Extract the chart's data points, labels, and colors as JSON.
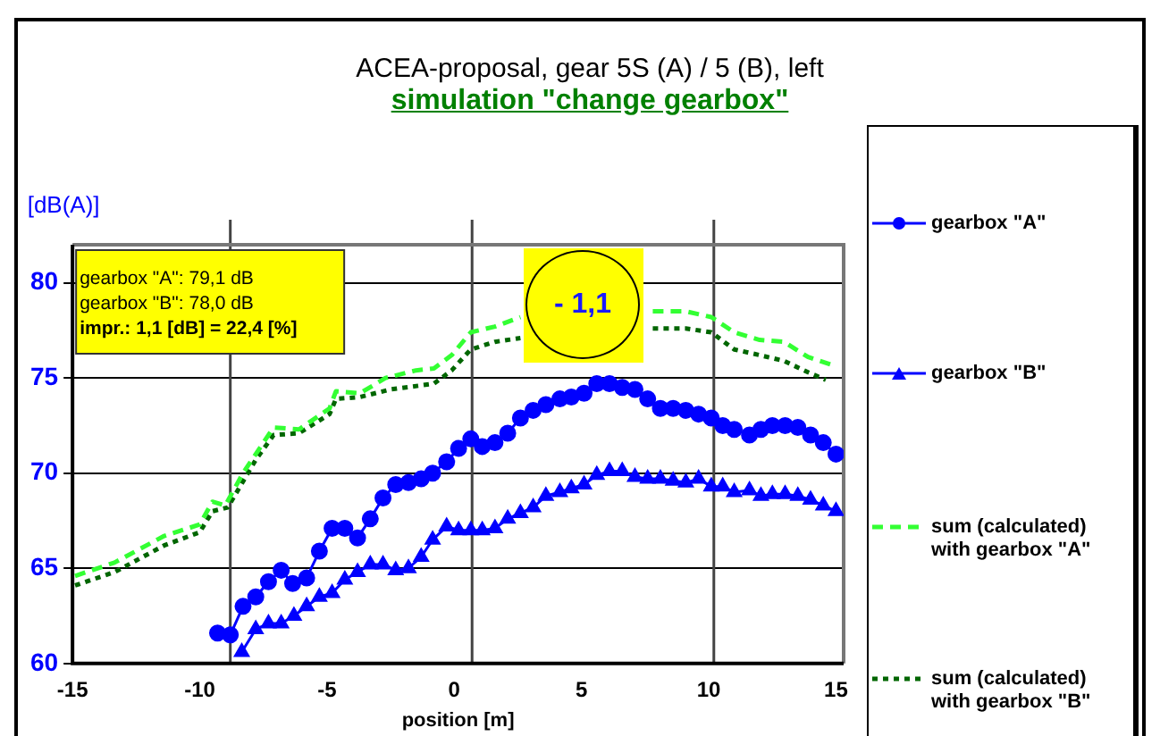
{
  "chart_data": {
    "type": "line",
    "title": "ACEA-proposal, gear 5S (A) / 5 (B), left",
    "subtitle": "simulation \"change gearbox\"",
    "xlabel": "position [m]",
    "ylabel": "[dB(A)]",
    "xlim": [
      -15,
      15.3
    ],
    "xticks": [
      -15,
      -10,
      -5,
      0,
      5,
      10,
      15
    ],
    "ylim": [
      60,
      82
    ],
    "yticks": [
      60,
      65,
      70,
      75,
      80
    ],
    "grid": "y",
    "legend": "right",
    "ref_lines": [
      {
        "axis": "x",
        "value": -8.8
      },
      {
        "axis": "x",
        "value": 0.7
      },
      {
        "axis": "x",
        "value": 10.2
      }
    ],
    "annotations": [
      "gearbox \"A\": 79,1 dB",
      "gearbox \"B\": 78,0 dB",
      "impr.: 1,1 [dB] = 22,4 [%]",
      "- 1,1"
    ],
    "series": [
      {
        "name": "gearbox \"A\"",
        "color": "#0000ff",
        "marker": "circle",
        "line_style": "solid",
        "x": [
          -9.3,
          -8.8,
          -8.3,
          -7.8,
          -7.3,
          -6.8,
          -6.35,
          -5.8,
          -5.3,
          -4.8,
          -4.3,
          -3.8,
          -3.3,
          -2.8,
          -2.3,
          -1.8,
          -1.3,
          -0.85,
          -0.3,
          0.17,
          0.65,
          1.1,
          1.6,
          2.1,
          2.6,
          3.1,
          3.6,
          4.15,
          4.6,
          5.1,
          5.6,
          6.1,
          6.6,
          7.1,
          7.6,
          8.1,
          8.6,
          9.1,
          9.6,
          10.1,
          10.55,
          11.0,
          11.6,
          12.05,
          12.5,
          13.0,
          13.5,
          14.0,
          14.5,
          15.0
        ],
        "values": [
          61.6,
          61.5,
          63.0,
          63.5,
          64.3,
          64.9,
          64.2,
          64.5,
          65.9,
          67.1,
          67.1,
          66.6,
          67.6,
          68.7,
          69.4,
          69.5,
          69.7,
          70.0,
          70.6,
          71.3,
          71.8,
          71.4,
          71.6,
          72.1,
          72.9,
          73.3,
          73.6,
          73.9,
          74.0,
          74.2,
          74.7,
          74.7,
          74.5,
          74.4,
          73.9,
          73.4,
          73.4,
          73.3,
          73.1,
          72.9,
          72.5,
          72.3,
          72.0,
          72.3,
          72.5,
          72.5,
          72.4,
          72.0,
          71.6,
          71.0
        ]
      },
      {
        "name": "gearbox \"B\"",
        "color": "#0000ff",
        "marker": "triangle",
        "line_style": "solid",
        "x": [
          -8.35,
          -7.8,
          -7.3,
          -6.8,
          -6.3,
          -5.8,
          -5.3,
          -4.8,
          -4.3,
          -3.8,
          -3.3,
          -2.8,
          -2.3,
          -1.8,
          -1.3,
          -0.85,
          -0.3,
          0.17,
          0.65,
          1.1,
          1.6,
          2.1,
          2.6,
          3.1,
          3.6,
          4.15,
          4.6,
          5.1,
          5.6,
          6.1,
          6.6,
          7.1,
          7.6,
          8.1,
          8.6,
          9.1,
          9.6,
          10.1,
          10.55,
          11.0,
          11.6,
          12.05,
          12.5,
          13.0,
          13.5,
          14.0,
          14.5,
          15.0
        ],
        "values": [
          60.6,
          61.8,
          62.1,
          62.1,
          62.5,
          63.0,
          63.5,
          63.7,
          64.4,
          64.8,
          65.2,
          65.2,
          64.9,
          65.0,
          65.6,
          66.5,
          67.2,
          67.0,
          67.0,
          67.0,
          67.1,
          67.6,
          67.9,
          68.2,
          68.8,
          69.0,
          69.2,
          69.4,
          69.9,
          70.1,
          70.1,
          69.8,
          69.7,
          69.7,
          69.6,
          69.5,
          69.7,
          69.3,
          69.3,
          69.0,
          69.1,
          68.8,
          68.9,
          68.9,
          68.8,
          68.6,
          68.3,
          68.0
        ]
      },
      {
        "name": "sum (calculated) with gearbox \"A\"",
        "color": "#33ff33",
        "marker": "none",
        "line_style": "dashed",
        "x": [
          -14.9,
          -13.35,
          -11.4,
          -10.0,
          -9.5,
          -9.0,
          -8.3,
          -7.55,
          -7.1,
          -6.1,
          -4.9,
          -4.65,
          -3.7,
          -2.7,
          -1.5,
          -0.8,
          -0.1,
          0.65,
          1.6,
          2.6,
          5,
          7.8,
          9.1,
          10.1,
          11.0,
          12.0,
          12.95,
          13.9,
          14.8
        ],
        "values": [
          64.6,
          65.3,
          66.7,
          67.3,
          68.5,
          68.3,
          70.0,
          71.5,
          72.4,
          72.3,
          73.4,
          74.3,
          74.2,
          75.0,
          75.4,
          75.5,
          76.2,
          77.4,
          77.7,
          78.2,
          null,
          78.5,
          78.5,
          78.2,
          77.4,
          77.0,
          76.9,
          76.1,
          75.7
        ]
      },
      {
        "name": "sum (calculated) with gearbox \"B\"",
        "color": "#006600",
        "marker": "none",
        "line_style": "dotted",
        "x": [
          -14.9,
          -13.35,
          -11.4,
          -10.0,
          -9.5,
          -8.9,
          -7.8,
          -7.1,
          -6.1,
          -4.9,
          -4.65,
          -3.7,
          -2.5,
          -0.8,
          -0.1,
          0.65,
          1.6,
          2.6,
          5,
          7.8,
          9.1,
          10.1,
          11.0,
          12.0,
          12.95,
          13.9,
          14.6
        ],
        "values": [
          64.1,
          64.8,
          66.2,
          66.9,
          68.0,
          68.2,
          70.7,
          72.0,
          72.1,
          73.1,
          73.9,
          74.0,
          74.4,
          74.7,
          75.4,
          76.5,
          76.9,
          77.1,
          null,
          77.6,
          77.6,
          77.4,
          76.5,
          76.2,
          75.9,
          75.3,
          74.9
        ]
      }
    ]
  }
}
